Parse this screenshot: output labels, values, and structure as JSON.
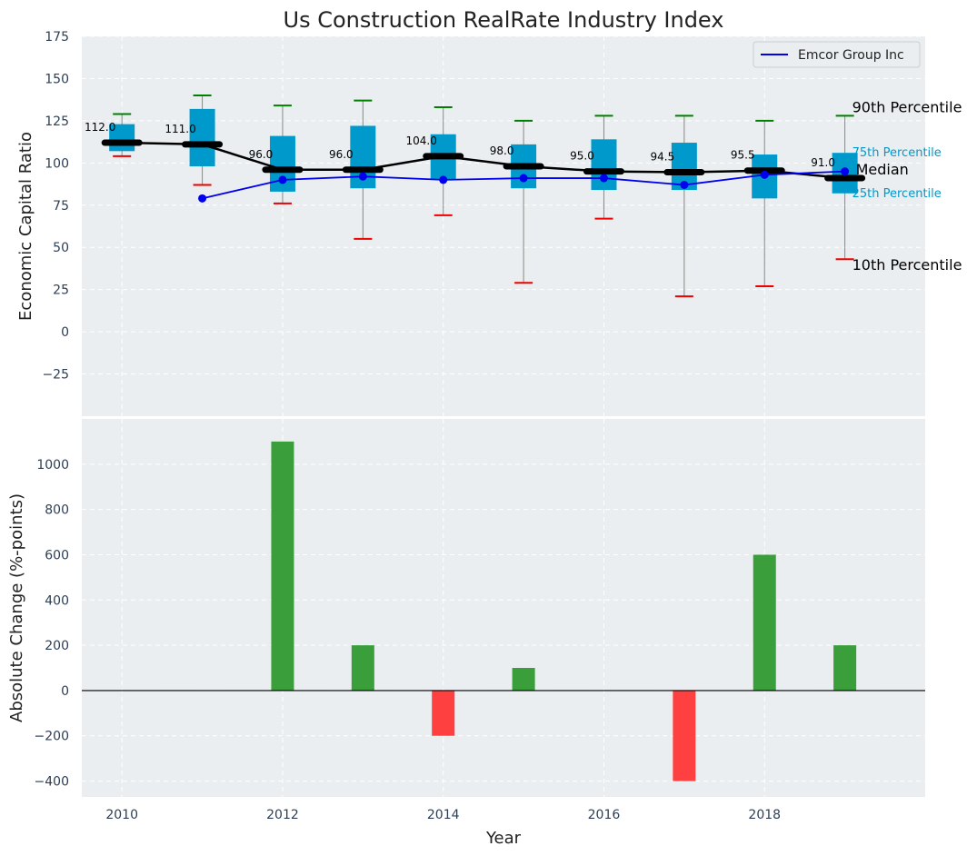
{
  "chart_data": [
    {
      "type": "box",
      "title": "Us Construction RealRate Industry Index",
      "ylabel": "Economic Capital Ratio",
      "ylim": [
        -50,
        175
      ],
      "yticks": [
        -25,
        0,
        25,
        50,
        75,
        100,
        125,
        150,
        175
      ],
      "grid": true,
      "legend_position": "top-right",
      "x": [
        2010,
        2011,
        2012,
        2013,
        2014,
        2015,
        2016,
        2017,
        2018,
        2019
      ],
      "percentile_90": [
        129,
        140,
        134,
        137,
        133,
        125,
        128,
        128,
        125,
        128
      ],
      "percentile_75": [
        123,
        132,
        116,
        122,
        117,
        111,
        114,
        112,
        105,
        106
      ],
      "median": [
        112,
        111,
        96,
        96,
        104,
        98,
        95,
        94.5,
        95.5,
        91
      ],
      "percentile_25": [
        107,
        98,
        83,
        85,
        90,
        85,
        84,
        84,
        79,
        82
      ],
      "percentile_10": [
        104,
        87,
        76,
        55,
        69,
        29,
        67,
        21,
        27,
        43
      ],
      "median_labels": [
        "112.0",
        "111.0",
        "96.0",
        "96.0",
        "104.0",
        "98.0",
        "95.0",
        "94.5",
        "95.5",
        "91.0"
      ],
      "series": [
        {
          "name": "Emcor Group Inc",
          "x": [
            2011,
            2012,
            2013,
            2014,
            2015,
            2016,
            2017,
            2018,
            2019
          ],
          "values": [
            79,
            90,
            92,
            90,
            91,
            91,
            87,
            93,
            95
          ],
          "color": "#0000ee"
        }
      ],
      "annotations": {
        "p90": "90th Percentile",
        "p75": "75th Percentile",
        "median": "Median",
        "p25": "25th Percentile",
        "p10": "10th Percentile"
      },
      "colors": {
        "box": "#0099cc",
        "median": "#000000",
        "whisker_high": "#008000",
        "whisker_low": "#ee0000",
        "background": "#eaeef0"
      }
    },
    {
      "type": "bar",
      "xlabel": "Year",
      "ylabel": "Absolute Change (%-points)",
      "ylim": [
        -470,
        1200
      ],
      "yticks": [
        -400,
        -200,
        0,
        200,
        400,
        600,
        800,
        1000
      ],
      "xticks": [
        2010,
        2012,
        2014,
        2016,
        2018
      ],
      "grid": true,
      "categories": [
        2010,
        2011,
        2012,
        2013,
        2014,
        2015,
        2016,
        2017,
        2018,
        2019
      ],
      "values": [
        0,
        0,
        1100,
        200,
        -200,
        100,
        0,
        -400,
        600,
        200
      ],
      "colors": {
        "positive": "#3a9e3a",
        "negative": "#ff4040"
      }
    }
  ]
}
